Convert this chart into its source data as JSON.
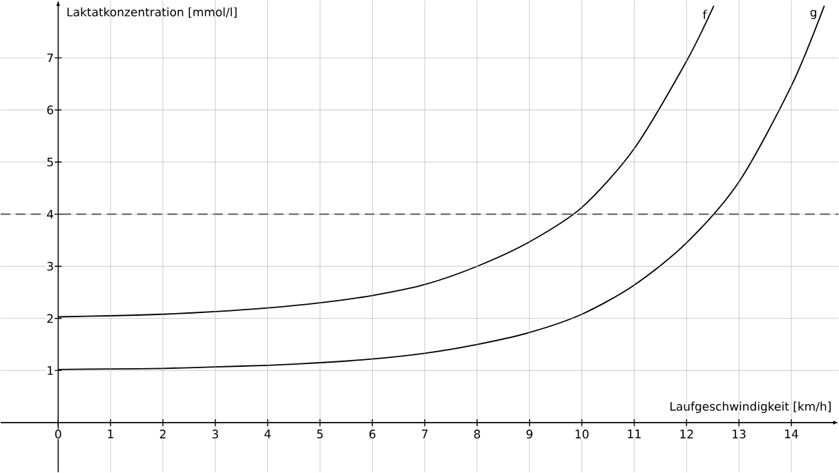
{
  "chart_data": {
    "type": "line",
    "xlabel": "Laufgeschwindigkeit [km/h]",
    "ylabel": "Laktatkonzentration [mmol/l]",
    "xlim": [
      -1.1,
      14.9
    ],
    "ylim": [
      -0.95,
      8.1
    ],
    "xticks": [
      0,
      1,
      2,
      3,
      4,
      5,
      6,
      7,
      8,
      9,
      10,
      11,
      12,
      13,
      14
    ],
    "yticks": [
      1,
      2,
      3,
      4,
      5,
      6,
      7
    ],
    "grid": true,
    "marker": "none",
    "line_style": "solid",
    "series": [
      {
        "name": "f",
        "color": "#000000",
        "x": [
          0,
          1,
          2,
          3,
          4,
          5,
          6,
          7,
          8,
          9,
          10,
          11,
          12,
          12.52
        ],
        "values": [
          2.03,
          2.05,
          2.08,
          2.13,
          2.2,
          2.3,
          2.44,
          2.65,
          3.0,
          3.47,
          4.13,
          5.26,
          6.94,
          8.0
        ]
      },
      {
        "name": "g",
        "color": "#000000",
        "x": [
          0,
          1,
          2,
          3,
          4,
          5,
          6,
          7,
          8,
          9,
          10,
          11,
          12,
          13,
          14,
          14.63
        ],
        "values": [
          1.02,
          1.03,
          1.04,
          1.07,
          1.1,
          1.15,
          1.22,
          1.33,
          1.5,
          1.73,
          2.08,
          2.64,
          3.45,
          4.62,
          6.46,
          8.0
        ]
      }
    ],
    "ref_lines": [
      {
        "axis": "y",
        "value": 4,
        "color": "#000000",
        "line_style": "dashed"
      }
    ]
  }
}
